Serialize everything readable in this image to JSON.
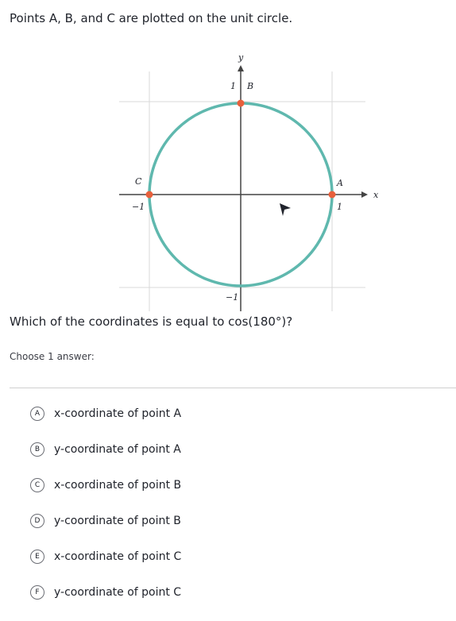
{
  "prompt": "Points A, B, and C are plotted on the unit circle.",
  "diagram": {
    "axis_labels": {
      "x": "x",
      "y": "y"
    },
    "ticks": {
      "x_neg": "−1",
      "x_pos": "1",
      "y_pos": "1",
      "y_neg": "−1"
    },
    "points": [
      {
        "label": "A"
      },
      {
        "label": "B"
      },
      {
        "label": "C"
      }
    ]
  },
  "question": "Which of the coordinates is equal to cos(180°)?",
  "instruction": "Choose 1 answer:",
  "options": [
    {
      "letter": "A",
      "text": "x-coordinate of point A"
    },
    {
      "letter": "B",
      "text": "y-coordinate of point A"
    },
    {
      "letter": "C",
      "text": "x-coordinate of point B"
    },
    {
      "letter": "D",
      "text": "y-coordinate of point B"
    },
    {
      "letter": "E",
      "text": "x-coordinate of point C"
    },
    {
      "letter": "F",
      "text": "y-coordinate of point C"
    }
  ]
}
